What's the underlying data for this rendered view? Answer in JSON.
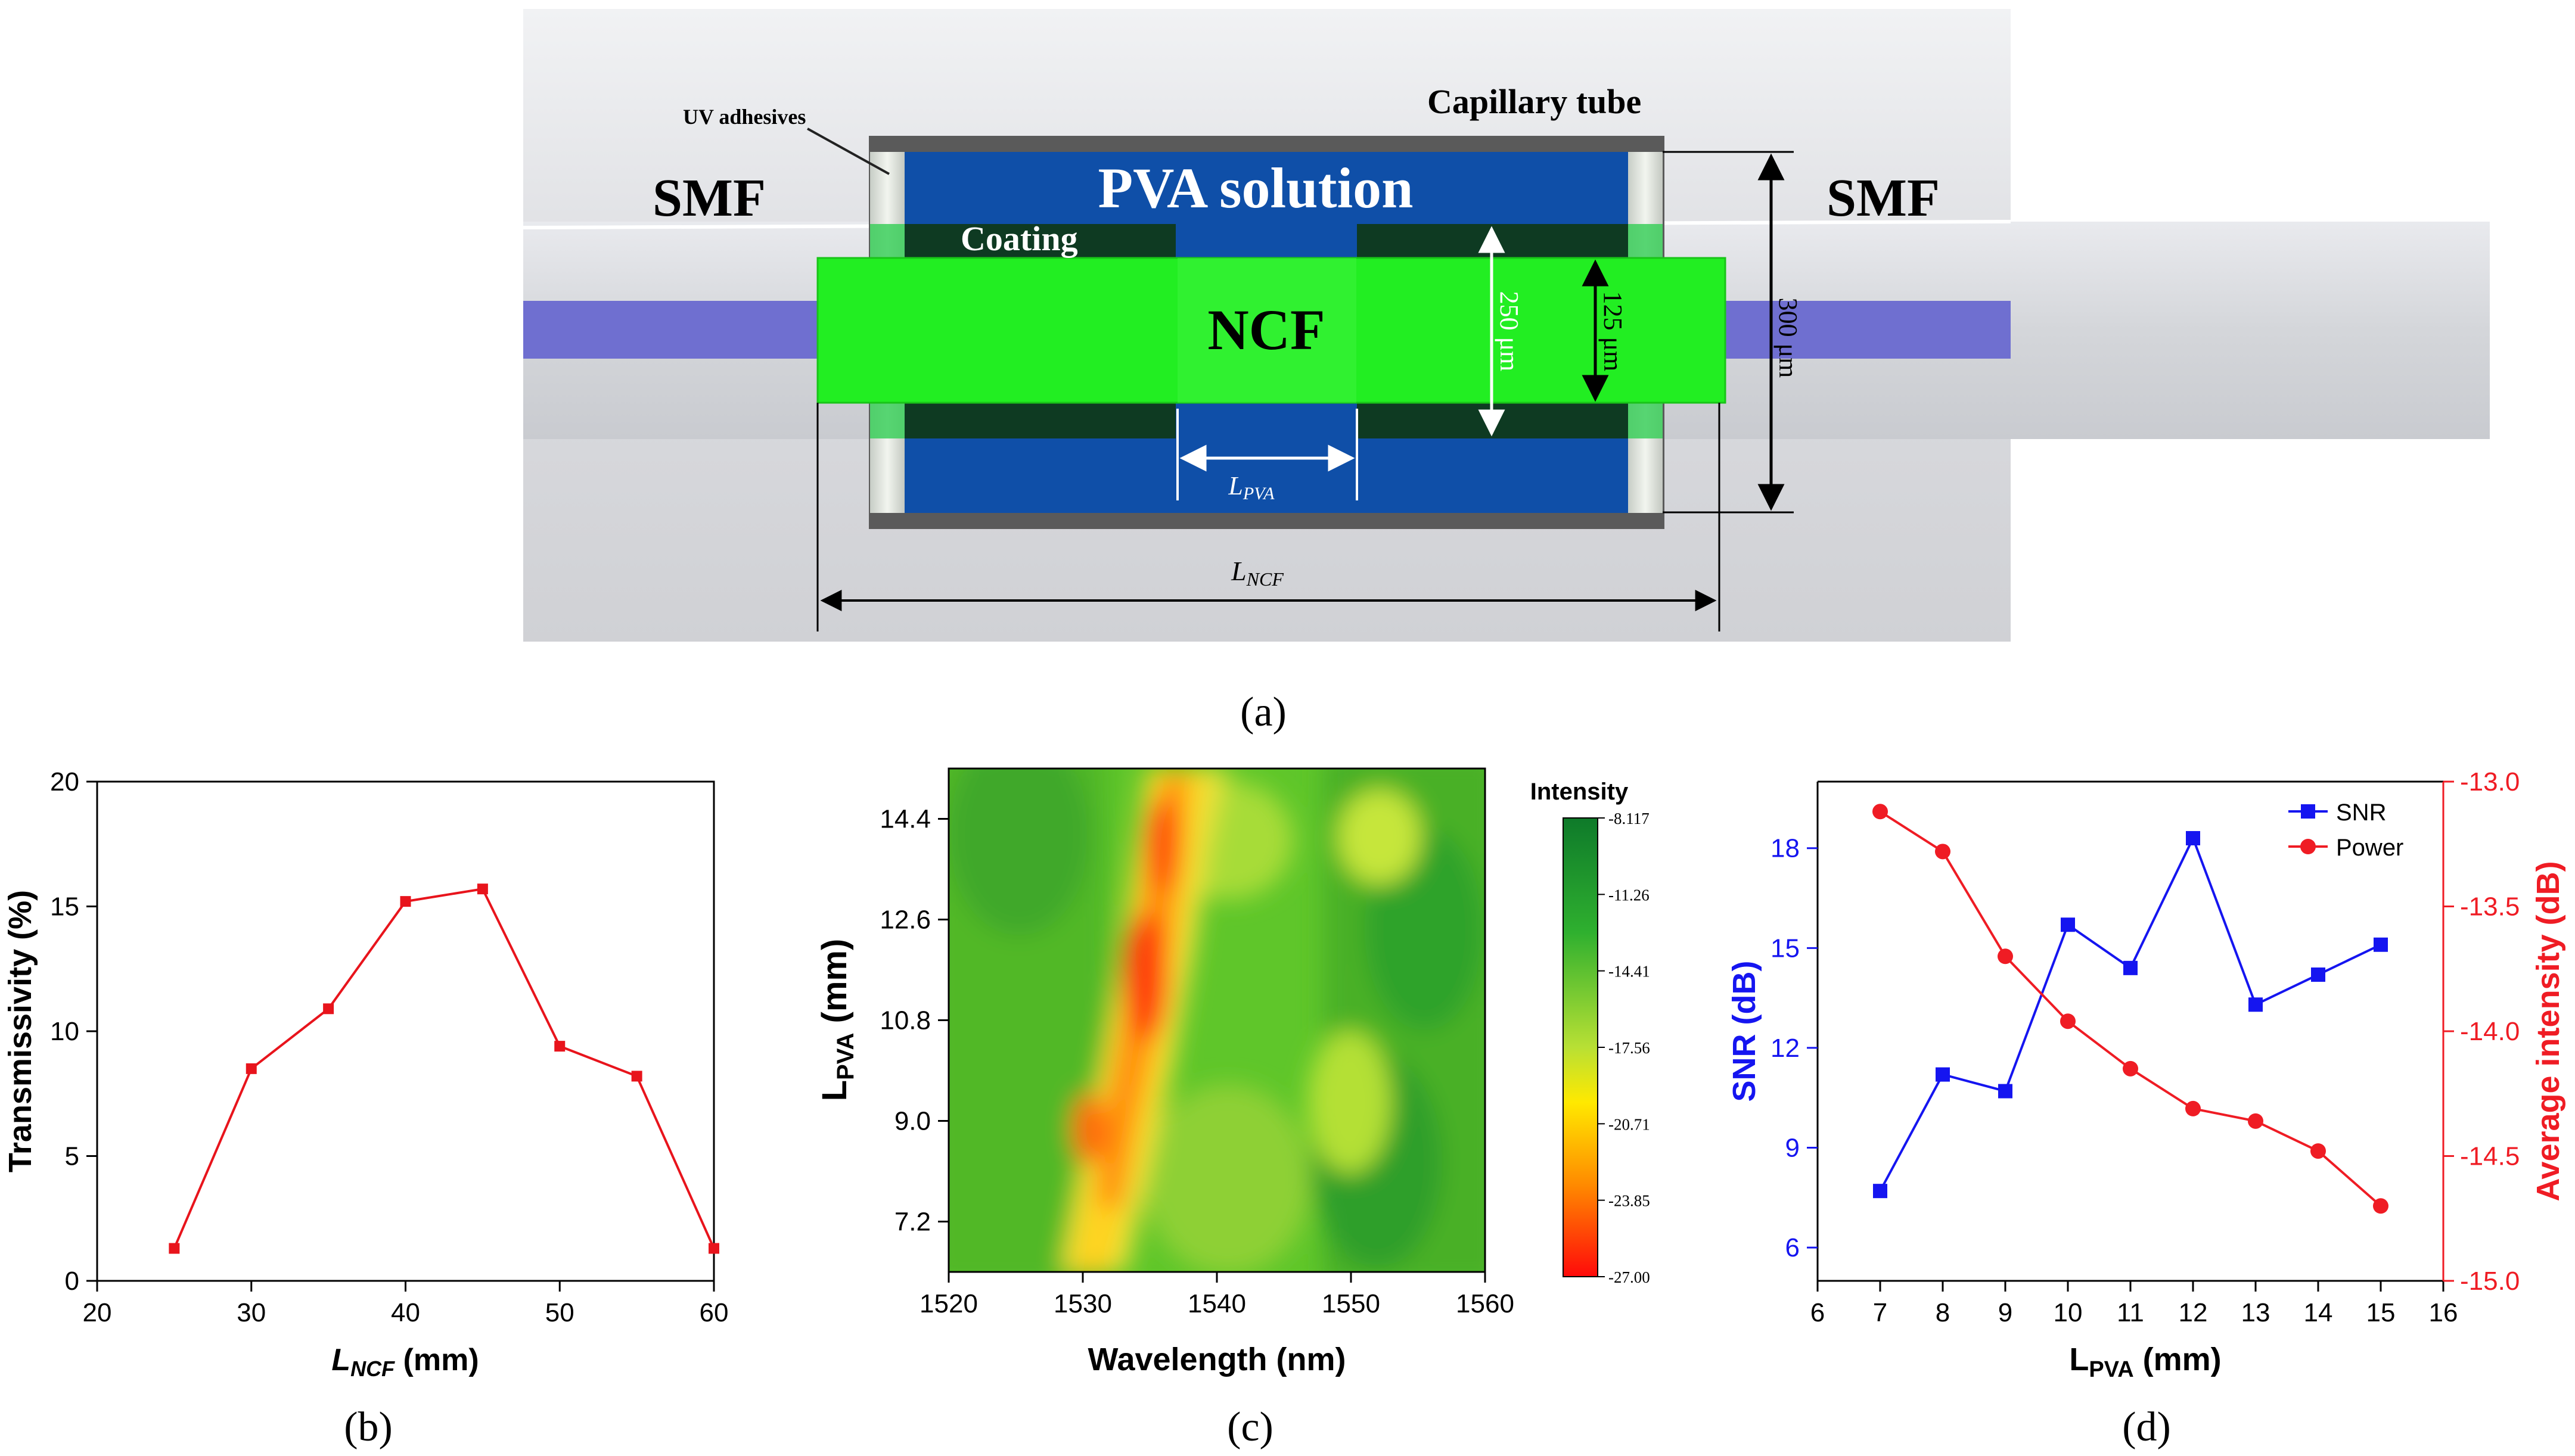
{
  "panel_a": {
    "caption": "(a)",
    "labels": {
      "smf_left": "SMF",
      "smf_right": "SMF",
      "uv": "UV adhesives",
      "capillary": "Capillary tube",
      "pva_solution": "PVA solution",
      "coating": "Coating",
      "ncf": "NCF",
      "d250": "250 μm",
      "d125": "125 μm",
      "d300": "300 μm",
      "lpva": "L",
      "lpva_sub": "PVA",
      "lncf": "L",
      "lncf_sub": "NCF"
    },
    "colors": {
      "pva": "#0f4fa8",
      "ncf": "#22ee22",
      "core": "#6f6fd0"
    }
  },
  "chart_b": {
    "caption": "(b)",
    "type": "line",
    "x": [
      25,
      30,
      35,
      40,
      45,
      50,
      55,
      60
    ],
    "y": [
      1.3,
      8.5,
      10.9,
      15.2,
      15.7,
      9.4,
      8.2,
      1.3
    ],
    "xlabel": "L",
    "xlabel_sub": "NCF",
    "xlabel_unit": " (mm)",
    "ylabel": "Transmissivity (%)",
    "xlim": [
      20,
      60
    ],
    "ylim": [
      0,
      20
    ],
    "xticks": [
      "20",
      "30",
      "40",
      "50",
      "60"
    ],
    "yticks": [
      "0",
      "5",
      "10",
      "15",
      "20"
    ],
    "color": "#e8141c"
  },
  "chart_c": {
    "caption": "(c)",
    "type": "heatmap",
    "xlabel": "Wavelength (nm)",
    "ylabel": "L",
    "ylabel_sub": "PVA",
    "ylabel_unit": " (mm)",
    "xlim": [
      1520,
      1560
    ],
    "ylim": [
      6.3,
      15.3
    ],
    "xticks": [
      "1520",
      "1530",
      "1540",
      "1550",
      "1560"
    ],
    "yticks": [
      "7.2",
      "9.0",
      "10.8",
      "12.6",
      "14.4"
    ],
    "colorbar_title": "Intensity",
    "colorbar_ticks": [
      "-8.117",
      "-11.26",
      "-14.41",
      "-17.56",
      "-20.71",
      "-23.85",
      "-27.00"
    ],
    "colorbar_range": [
      -27.0,
      -8.117
    ]
  },
  "chart_d": {
    "caption": "(d)",
    "type": "line",
    "x": [
      7,
      8,
      9,
      10,
      11,
      12,
      13,
      14,
      15
    ],
    "series": [
      {
        "name": "SNR",
        "axis": "left",
        "values": [
          7.7,
          11.2,
          10.7,
          15.7,
          14.4,
          18.3,
          13.3,
          14.2,
          15.1
        ],
        "color": "#1515f0"
      },
      {
        "name": "Power",
        "axis": "right",
        "values": [
          -13.12,
          -13.28,
          -13.7,
          -13.96,
          -14.15,
          -14.31,
          -14.36,
          -14.48,
          -14.7
        ],
        "color": "#ef1c24"
      }
    ],
    "xlabel": "L",
    "xlabel_sub": "PVA",
    "xlabel_unit": " (mm)",
    "ylabel_left": "SNR (dB)",
    "ylabel_right": "Average intensity (dB)",
    "xlim": [
      6,
      16
    ],
    "ylim_left": [
      5.0,
      20.0
    ],
    "ylim_right": [
      -15.0,
      -13.0
    ],
    "xticks": [
      "6",
      "7",
      "8",
      "9",
      "10",
      "11",
      "12",
      "13",
      "14",
      "15",
      "16"
    ],
    "yticks_left": [
      "6",
      "9",
      "12",
      "15",
      "18"
    ],
    "yticks_right": [
      "-15.0",
      "-14.5",
      "-14.0",
      "-13.5",
      "-13.0"
    ],
    "legend_position": "top-right"
  }
}
